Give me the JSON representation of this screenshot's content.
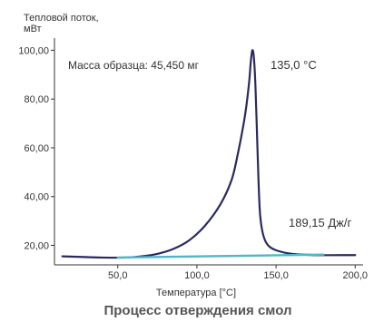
{
  "chart_data": {
    "type": "line",
    "title": "Процесс отверждения смол",
    "xlabel": "Температура [°C]",
    "ylabel": "Тепловой поток, мВт",
    "xlim": [
      10,
      205
    ],
    "ylim": [
      12,
      105
    ],
    "x_ticks": [
      50,
      100,
      150,
      200
    ],
    "x_tick_labels": [
      "50,0",
      "100,0",
      "150,0",
      "200,0"
    ],
    "y_ticks": [
      20,
      40,
      60,
      80,
      100
    ],
    "y_tick_labels": [
      "20,00",
      "40,00",
      "60,00",
      "80,00",
      "100,00"
    ],
    "grid": false,
    "series": [
      {
        "color": "#2b2a5e",
        "x": [
          15,
          25,
          40,
          55,
          65,
          75,
          85,
          95,
          105,
          115,
          122,
          126,
          129,
          131,
          133,
          134,
          135,
          136,
          137,
          138,
          139,
          140,
          142,
          145,
          150,
          160,
          175,
          190,
          200
        ],
        "y": [
          15.5,
          15.3,
          15.0,
          15.0,
          15.5,
          16.5,
          18.5,
          22.0,
          28.0,
          37.0,
          47.0,
          58.0,
          68.0,
          76.0,
          87.0,
          95.0,
          100.0,
          97.0,
          85.0,
          65.0,
          45.0,
          32.0,
          24.0,
          20.0,
          18.0,
          16.5,
          16.0,
          16.0,
          16.0
        ]
      },
      {
        "color": "#4fb6c8",
        "x": [
          50,
          180
        ],
        "y": [
          15.0,
          16.2
        ]
      }
    ],
    "annotations": [
      {
        "text": "Масса образца: 45,450 мг"
      },
      {
        "text": "135,0 °C"
      },
      {
        "text": "189,15 Дж/г"
      }
    ]
  }
}
